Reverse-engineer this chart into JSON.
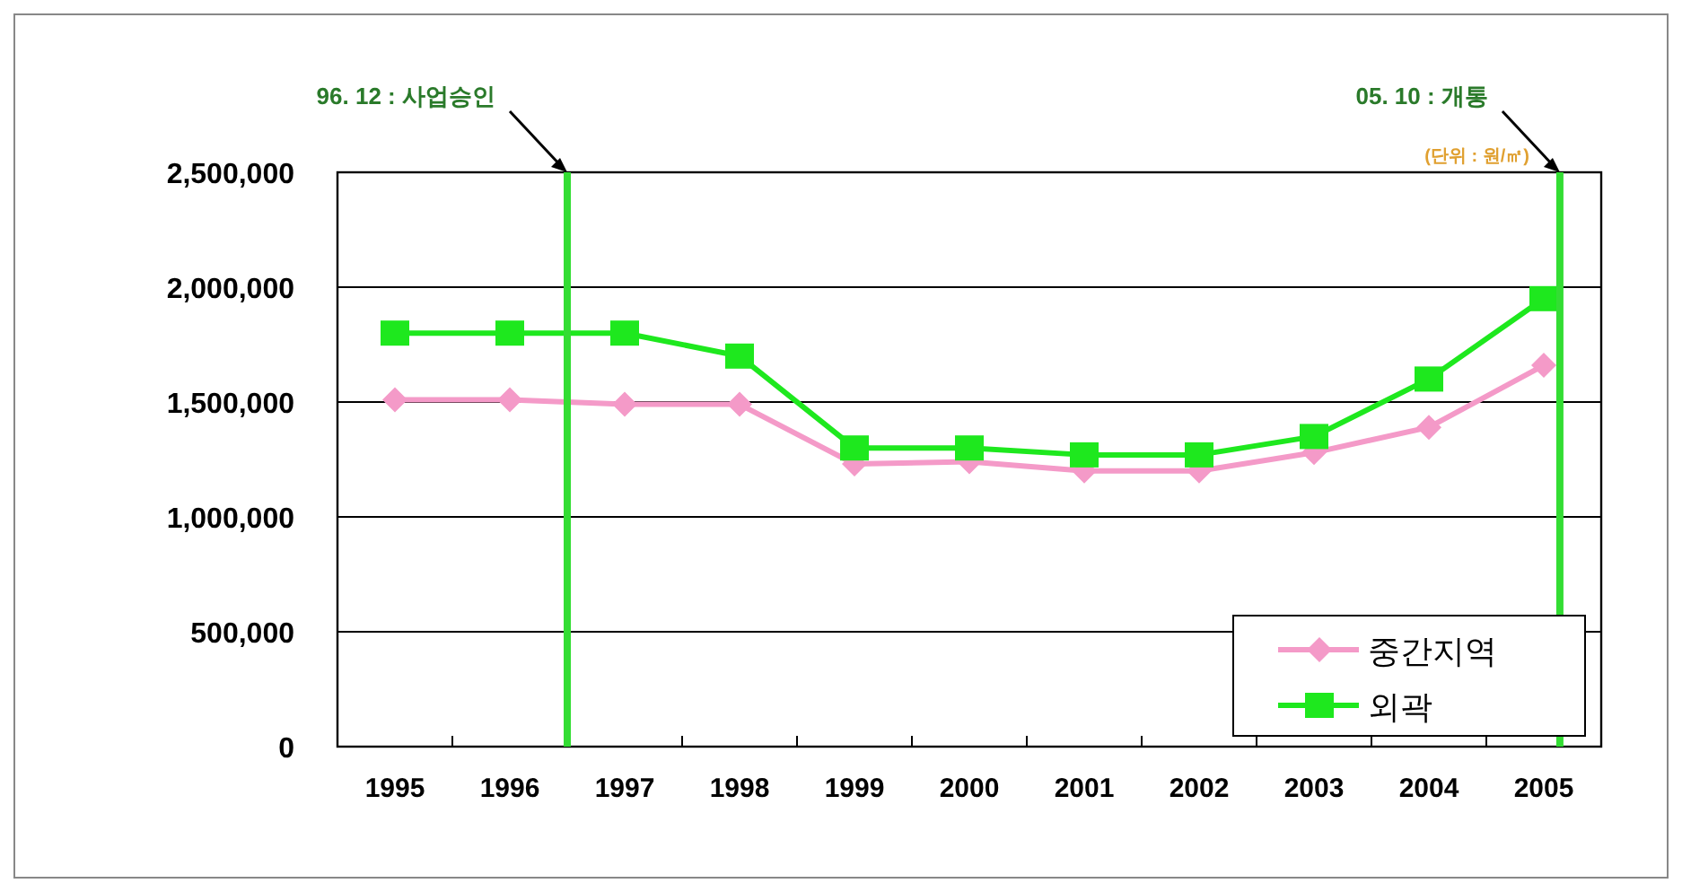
{
  "chart_data": {
    "type": "line",
    "x": [
      1995,
      1996,
      1997,
      1998,
      1999,
      2000,
      2001,
      2002,
      2003,
      2004,
      2005
    ],
    "xlim": [
      1994.5,
      2005.5
    ],
    "xticks": [
      1995,
      1996,
      1997,
      1998,
      1999,
      2000,
      2001,
      2002,
      2003,
      2004,
      2005,
      {
        "value": 1995.5,
        "label": null
      },
      {
        "value": 1996.5,
        "label": null
      },
      {
        "value": 1997.5,
        "label": null
      },
      {
        "value": 1998.5,
        "label": null
      },
      {
        "value": 1999.5,
        "label": null
      },
      {
        "value": 2000.5,
        "label": null
      },
      {
        "value": 2001.5,
        "label": null
      },
      {
        "value": 2002.5,
        "label": null
      },
      {
        "value": 2003.5,
        "label": null
      },
      {
        "value": 2004.5,
        "label": null
      }
    ],
    "ylim": [
      0,
      2500000
    ],
    "yticks": [
      0,
      {
        "value": 500000,
        "label": "500,000"
      },
      {
        "value": 1000000,
        "label": "1,000,000"
      },
      {
        "value": 1500000,
        "label": "1,500,000"
      },
      {
        "value": 2000000,
        "label": "2,000,000"
      },
      {
        "value": 2500000,
        "label": "2,500,000"
      }
    ],
    "series": [
      {
        "name": "중간지역",
        "color": "#f49ac8",
        "marker": "diamond",
        "values": [
          1510000,
          1510000,
          1490000,
          1490000,
          1230000,
          1240000,
          1200000,
          1200000,
          1280000,
          1390000,
          1660000
        ]
      },
      {
        "name": "외곽",
        "color": "#1ee81e",
        "marker": "square",
        "values": [
          1800000,
          1800000,
          1800000,
          1700000,
          1300000,
          1300000,
          1270000,
          1270000,
          1350000,
          1600000,
          1950000
        ]
      }
    ],
    "ref_lines": [
      {
        "axis": "x",
        "value": 1996.5,
        "label": "96. 12 : 사업승인",
        "color": "#33dd33"
      },
      {
        "axis": "x",
        "value": 2005.14,
        "label": "05. 10 : 개통",
        "color": "#33dd33"
      }
    ],
    "annotations": [
      "(단위 : 원/㎡)"
    ],
    "grid": "y",
    "legend": "bottom right",
    "line_style": "solid"
  }
}
